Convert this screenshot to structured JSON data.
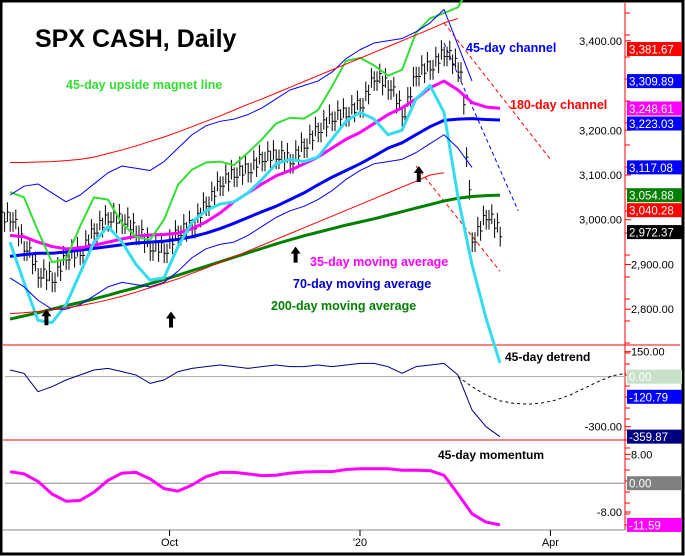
{
  "chart_data": {
    "type": "line",
    "title": "SPX CASH, Daily",
    "x_unit": "weeks from late Jul 2019",
    "x_ticks": [
      {
        "label": "Oct",
        "x": 11.4
      },
      {
        "label": "'20",
        "x": 25
      },
      {
        "label": "Apr",
        "x": 38.6
      }
    ],
    "panels": {
      "price": {
        "ylim": [
          2720,
          3480
        ],
        "ticks": [
          "3,400.00",
          "3,200.00",
          "3,100.00",
          "3,000.00",
          "2,900.00",
          "2,800.00"
        ],
        "tick_values": [
          3400,
          3200,
          3100,
          3000,
          2900,
          2800
        ]
      },
      "detrend": {
        "ylim": [
          -380,
          190
        ],
        "ticks": [
          "150.00",
          "-300.00"
        ],
        "tick_values": [
          150,
          -300
        ]
      },
      "momentum": {
        "ylim": [
          -13,
          12
        ],
        "ticks": [
          "8.00",
          "-8.00"
        ],
        "tick_values": [
          8,
          -8
        ]
      }
    },
    "value_labels": [
      {
        "text": "3,381.67",
        "value": 3381.67,
        "color": "#ff0000",
        "panel": "price"
      },
      {
        "text": "3,309.89",
        "value": 3309.89,
        "color": "#0000ff",
        "panel": "price"
      },
      {
        "text": "3,248.61",
        "value": 3248.61,
        "color": "#ff00ff",
        "panel": "price"
      },
      {
        "text": "3,223.03",
        "value": 3223.03,
        "color": "#0000ff",
        "panel": "price"
      },
      {
        "text": "3,117.08",
        "value": 3117.08,
        "color": "#0000ff",
        "panel": "price"
      },
      {
        "text": "3,054.88",
        "value": 3054.88,
        "color": "#008000",
        "panel": "price"
      },
      {
        "text": "3,040.28",
        "value": 3040.28,
        "color": "#ff0000",
        "panel": "price"
      },
      {
        "text": "2,972.37",
        "value": 2972.37,
        "color": "#000000",
        "panel": "price"
      },
      {
        "text": "0.00",
        "value": 0,
        "color": "#c8e0c8",
        "panel": "detrend"
      },
      {
        "text": "-120.79",
        "value": -120.79,
        "color": "#0000ff",
        "panel": "detrend"
      },
      {
        "text": "-359.87",
        "value": -359.87,
        "color": "#000080",
        "panel": "detrend"
      },
      {
        "text": "0.00",
        "value": 0,
        "color": "#808080",
        "panel": "momentum"
      },
      {
        "text": "-11.59",
        "value": -11.59,
        "color": "#ff00ff",
        "panel": "momentum"
      }
    ],
    "annotations": [
      {
        "text": "45-day upside magnet line",
        "color": "#33dd33"
      },
      {
        "text": "45-day channel",
        "color": "#0000ff"
      },
      {
        "text": "180-day channel",
        "color": "#ff0000"
      },
      {
        "text": "35-day moving average",
        "color": "#ff00ff"
      },
      {
        "text": "70-day moving average",
        "color": "#0000cc"
      },
      {
        "text": "200-day moving average",
        "color": "#008000"
      },
      {
        "text": "45-day detrend",
        "color": "#000000"
      },
      {
        "text": "45-day momentum",
        "color": "#000000"
      }
    ],
    "series": [
      {
        "name": "SPX price",
        "panel": "price",
        "color": "#000000",
        "values": [
          3005,
          2940,
          2880,
          2870,
          2920,
          2930,
          2980,
          3005,
          3000,
          2975,
          2940,
          2935,
          2975,
          2990,
          3040,
          3085,
          3105,
          3115,
          3140,
          3145,
          3135,
          3170,
          3205,
          3230,
          3240,
          3260,
          3320,
          3300,
          3240,
          3330,
          3345,
          3375,
          3340,
          2960,
          3010,
          2972
        ]
      },
      {
        "name": "200-day moving average",
        "panel": "price",
        "color": "#008000",
        "width": 3,
        "values": [
          2778,
          2785,
          2792,
          2800,
          2808,
          2815,
          2823,
          2831,
          2840,
          2848,
          2857,
          2866,
          2876,
          2886,
          2896,
          2906,
          2916,
          2926,
          2936,
          2946,
          2955,
          2964,
          2972,
          2980,
          2988,
          2995,
          3002,
          3010,
          3018,
          3026,
          3034,
          3042,
          3048,
          3052,
          3054,
          3055
        ]
      },
      {
        "name": "70-day moving average",
        "panel": "price",
        "color": "#0000ff",
        "width": 3,
        "values": [
          2918,
          2922,
          2925,
          2925,
          2928,
          2932,
          2936,
          2940,
          2944,
          2948,
          2950,
          2952,
          2956,
          2962,
          2970,
          2980,
          2992,
          3005,
          3018,
          3030,
          3045,
          3060,
          3078,
          3095,
          3110,
          3125,
          3142,
          3160,
          3172,
          3190,
          3208,
          3222,
          3225,
          3226,
          3224,
          3223
        ]
      },
      {
        "name": "35-day moving average",
        "panel": "price",
        "color": "#ff00ff",
        "width": 3,
        "values": [
          2965,
          2962,
          2950,
          2940,
          2935,
          2937,
          2943,
          2950,
          2957,
          2963,
          2966,
          2967,
          2970,
          2980,
          2995,
          3015,
          3040,
          3060,
          3080,
          3098,
          3110,
          3125,
          3140,
          3160,
          3180,
          3195,
          3215,
          3235,
          3250,
          3270,
          3295,
          3310,
          3290,
          3262,
          3252,
          3249
        ]
      },
      {
        "name": "45-day upside magnet line",
        "panel": "price",
        "color": "#33dd33",
        "width": 2,
        "values": [
          3062,
          3050,
          2975,
          2905,
          2912,
          2985,
          3050,
          3045,
          2992,
          2962,
          2955,
          3000,
          3078,
          3112,
          3128,
          3130,
          3122,
          3150,
          3180,
          3215,
          3228,
          3226,
          3245,
          3298,
          3355,
          3362,
          3345,
          3322,
          3335,
          3418,
          3450,
          3462,
          3475,
          3530
        ]
      },
      {
        "name": "45-day lower band (cyan)",
        "panel": "price",
        "color": "#33ddee",
        "width": 3,
        "values": [
          2950,
          2860,
          2775,
          2770,
          2810,
          2880,
          2950,
          2985,
          2950,
          2900,
          2865,
          2870,
          2940,
          2995,
          3020,
          3035,
          3040,
          3060,
          3090,
          3125,
          3135,
          3130,
          3140,
          3180,
          3220,
          3240,
          3225,
          3190,
          3200,
          3270,
          3300,
          3240,
          3050,
          2900,
          2780,
          2680
        ]
      },
      {
        "name": "45-day channel upper",
        "panel": "price",
        "color": "#0000ff",
        "width": 1,
        "values": [
          3055,
          3075,
          3080,
          3060,
          3040,
          3055,
          3080,
          3105,
          3120,
          3115,
          3110,
          3130,
          3160,
          3190,
          3210,
          3220,
          3225,
          3235,
          3250,
          3270,
          3290,
          3300,
          3310,
          3330,
          3360,
          3380,
          3395,
          3400,
          3405,
          3420,
          3440,
          3470,
          3390,
          3310
        ]
      },
      {
        "name": "45-day channel lower",
        "panel": "price",
        "color": "#0000ff",
        "width": 1,
        "values": [
          2870,
          2850,
          2820,
          2800,
          2800,
          2810,
          2830,
          2850,
          2860,
          2855,
          2850,
          2860,
          2885,
          2915,
          2935,
          2945,
          2950,
          2965,
          2985,
          3005,
          3020,
          3030,
          3045,
          3065,
          3090,
          3110,
          3125,
          3130,
          3135,
          3150,
          3170,
          3190,
          3160,
          3117
        ]
      },
      {
        "name": "180-day channel upper",
        "panel": "price",
        "color": "#ff0000",
        "width": 1,
        "values": [
          3128,
          3128,
          3129,
          3130,
          3132,
          3135,
          3140,
          3148,
          3156,
          3165,
          3175,
          3185,
          3196,
          3208,
          3220,
          3232,
          3245,
          3258,
          3270,
          3283,
          3296,
          3309,
          3322,
          3335,
          3348,
          3361,
          3374,
          3387,
          3400,
          3413,
          3426,
          3440,
          3450
        ]
      },
      {
        "name": "180-day channel lower",
        "panel": "price",
        "color": "#ff0000",
        "width": 1,
        "values": [
          2790,
          2792,
          2795,
          2799,
          2803,
          2808,
          2814,
          2821,
          2829,
          2838,
          2848,
          2858,
          2868,
          2880,
          2892,
          2905,
          2917,
          2930,
          2943,
          2956,
          2969,
          2982,
          2995,
          3008,
          3021,
          3034,
          3047,
          3060,
          3073,
          3086,
          3100,
          3105
        ]
      },
      {
        "name": "45-day detrend",
        "panel": "detrend",
        "color": "#000080",
        "width": 1,
        "values": [
          40,
          20,
          -90,
          -60,
          -20,
          10,
          40,
          50,
          30,
          10,
          -40,
          -20,
          30,
          50,
          60,
          70,
          60,
          50,
          60,
          70,
          60,
          60,
          70,
          60,
          70,
          80,
          80,
          60,
          20,
          60,
          70,
          80,
          10,
          -200,
          -300,
          -360
        ]
      },
      {
        "name": "45-day detrend projection",
        "panel": "detrend",
        "color": "#000000",
        "dashed": true,
        "start": 32,
        "values": [
          0,
          -60,
          -110,
          -145,
          -160,
          -165,
          -158,
          -140,
          -110,
          -70,
          -30,
          5,
          20
        ]
      },
      {
        "name": "45-day momentum",
        "panel": "momentum",
        "color": "#ff00ff",
        "width": 3,
        "values": [
          3.2,
          2.6,
          0.5,
          -3,
          -5,
          -4.8,
          -2.5,
          0.8,
          2.8,
          3,
          1.2,
          -1.5,
          -2.2,
          -0.5,
          1.8,
          3,
          3,
          2.6,
          2.1,
          2.2,
          2.8,
          3.1,
          3.2,
          3.2,
          3.8,
          4,
          4,
          4,
          3.6,
          3.6,
          3.5,
          2.2,
          -3,
          -8.5,
          -10.8,
          -11.59
        ]
      }
    ],
    "channel_projections": [
      {
        "name": "180-day channel upper projection",
        "color": "#ff0000",
        "from": [
          31,
          3440
        ],
        "to": [
          38.6,
          3135
        ]
      },
      {
        "name": "180-day channel lower projection",
        "color": "#ff0000",
        "from": [
          29,
          3120
        ],
        "to": [
          35,
          2885
        ]
      },
      {
        "name": "45-day channel projection",
        "color": "#0000ff",
        "from": [
          31,
          3395
        ],
        "to": [
          36.3,
          3020
        ]
      }
    ],
    "turn_arrows_weeks": [
      2.6,
      11.5,
      20.4,
      29.2
    ]
  }
}
